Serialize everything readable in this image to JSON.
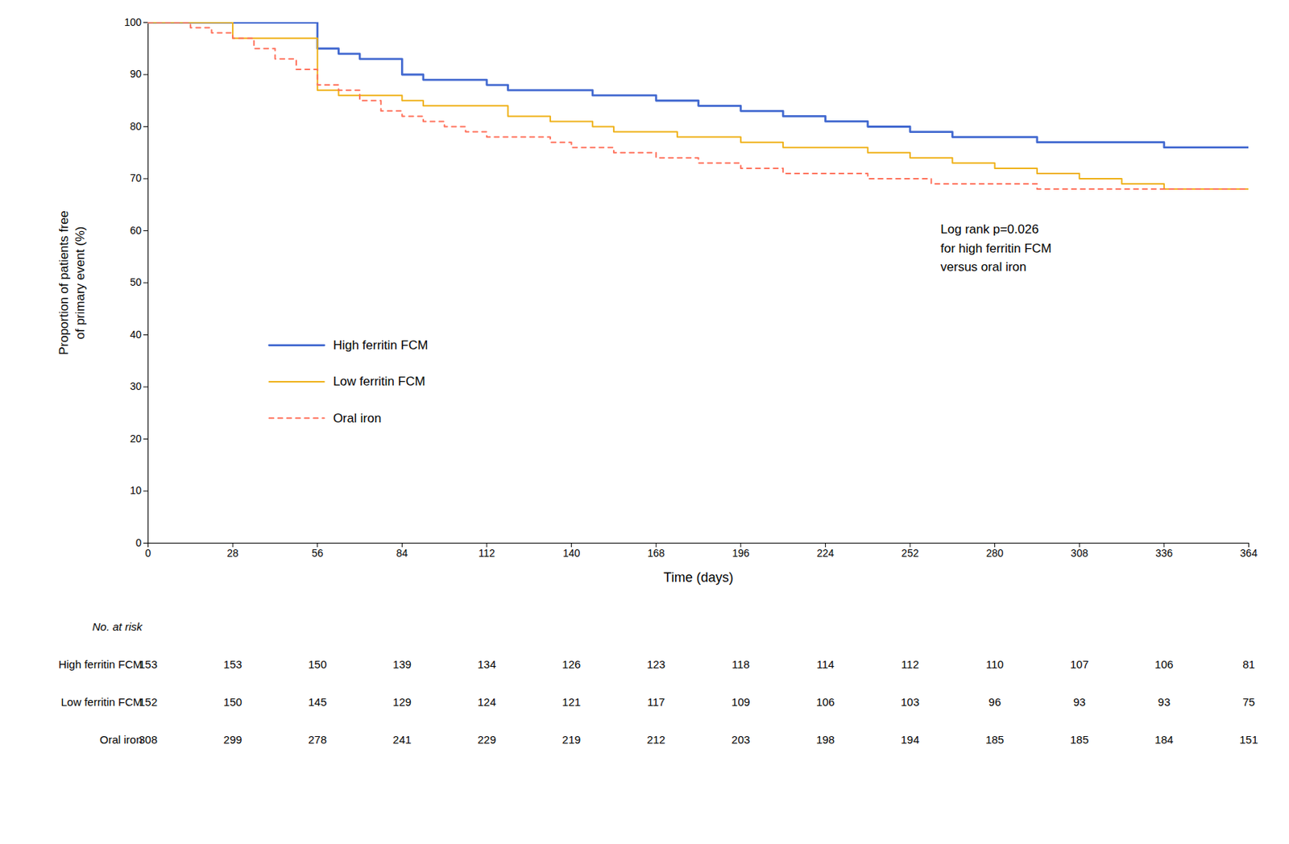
{
  "chart_data": {
    "type": "step",
    "ylabel": "Proportion of patients free\nof primary event (%)",
    "xlabel": "Time (days)",
    "xlim": [
      0,
      364
    ],
    "ylim": [
      0,
      100
    ],
    "xticks": [
      0,
      28,
      56,
      84,
      112,
      140,
      168,
      196,
      224,
      252,
      280,
      308,
      336,
      364
    ],
    "yticks": [
      0,
      10,
      20,
      30,
      40,
      50,
      60,
      70,
      80,
      90,
      100
    ],
    "grid": false,
    "legend": "lower left",
    "annotation": "Log rank p=0.026\nfor high ferritin FCM\nversus oral iron",
    "series": [
      {
        "name": "High ferritin FCM",
        "line_style": "solid",
        "x": [
          0,
          28,
          56,
          56,
          63,
          70,
          77,
          84,
          91,
          98,
          105,
          112,
          119,
          126,
          133,
          140,
          147,
          154,
          161,
          168,
          175,
          182,
          196,
          203,
          210,
          224,
          238,
          252,
          259,
          266,
          280,
          294,
          308,
          322,
          336,
          364
        ],
        "values": [
          100,
          100,
          100,
          95,
          94,
          93,
          93,
          90,
          89,
          89,
          89,
          88,
          87,
          87,
          87,
          87,
          86,
          86,
          86,
          85,
          85,
          84,
          83,
          83,
          82,
          81,
          80,
          79,
          79,
          78,
          78,
          77,
          77,
          77,
          76,
          76
        ]
      },
      {
        "name": "Low ferritin FCM",
        "line_style": "solid",
        "x": [
          0,
          28,
          28,
          35,
          42,
          49,
          56,
          56,
          63,
          70,
          77,
          84,
          91,
          98,
          105,
          112,
          119,
          126,
          133,
          140,
          147,
          154,
          168,
          175,
          196,
          210,
          224,
          238,
          252,
          266,
          280,
          294,
          308,
          322,
          336,
          364
        ],
        "values": [
          100,
          100,
          97,
          97,
          97,
          97,
          97,
          87,
          86,
          86,
          86,
          85,
          84,
          84,
          84,
          84,
          82,
          82,
          81,
          81,
          80,
          79,
          79,
          78,
          77,
          76,
          76,
          75,
          74,
          73,
          72,
          71,
          70,
          69,
          68,
          68
        ]
      },
      {
        "name": "Oral iron",
        "line_style": "dashed",
        "x": [
          0,
          7,
          14,
          21,
          28,
          35,
          42,
          49,
          56,
          63,
          70,
          77,
          84,
          91,
          98,
          105,
          112,
          119,
          126,
          133,
          140,
          147,
          154,
          161,
          168,
          175,
          182,
          196,
          203,
          210,
          224,
          238,
          252,
          259,
          266,
          280,
          294,
          308,
          322,
          336,
          364
        ],
        "values": [
          100,
          100,
          99,
          98,
          97,
          95,
          93,
          91,
          88,
          87,
          85,
          83,
          82,
          81,
          80,
          79,
          78,
          78,
          78,
          77,
          76,
          76,
          75,
          75,
          74,
          74,
          73,
          72,
          72,
          71,
          71,
          70,
          70,
          69,
          69,
          69,
          68,
          68,
          68,
          68,
          68
        ]
      }
    ],
    "risk_table": {
      "label": "No. at risk",
      "times": [
        0,
        28,
        56,
        84,
        112,
        140,
        168,
        196,
        224,
        252,
        280,
        308,
        336,
        364
      ],
      "rows": [
        {
          "name": "High ferritin FCM",
          "values": [
            153,
            153,
            150,
            139,
            134,
            126,
            123,
            118,
            114,
            112,
            110,
            107,
            106,
            81
          ]
        },
        {
          "name": "Low ferritin FCM",
          "values": [
            152,
            150,
            145,
            129,
            124,
            121,
            117,
            109,
            106,
            103,
            96,
            93,
            93,
            75
          ]
        },
        {
          "name": "Oral iron",
          "values": [
            308,
            299,
            278,
            241,
            229,
            219,
            212,
            203,
            198,
            194,
            185,
            185,
            184,
            151
          ]
        }
      ]
    }
  }
}
